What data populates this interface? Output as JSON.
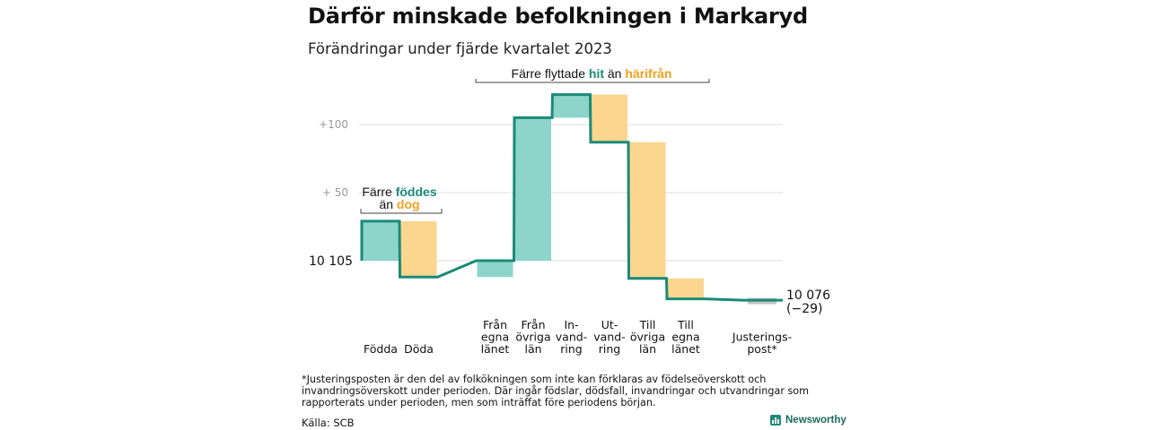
{
  "title": "Därför minskade befolkningen i Markaryd",
  "subtitle": "Förändringar under fjärde kvartalet 2023",
  "colors": {
    "increase": "#8dd5cb",
    "decrease": "#fbd68f",
    "adjustment": "#c4c4c4",
    "line": "#1a8a78",
    "teal_text": "#1a8a78",
    "orange_text": "#f0a020",
    "grid": "#dcdcdc"
  },
  "annotations": {
    "births": {
      "line1_pre": "Färre ",
      "line1_hl": "föddes",
      "line2_pre": "än ",
      "line2_hl": "dog"
    },
    "migration": {
      "pre": "Färre flyttade ",
      "hl1": "hit",
      "mid": " än ",
      "hl2": "härifrån"
    }
  },
  "start_label": "10  105",
  "end_label_1": "10 076",
  "end_label_2": "(−29)",
  "footnote": "*Justeringsposten är den del av folkökningen som inte kan förklaras av födelseöverskott och invandringsöverskott under perioden. Där ingår födslar, dödsfall, invandringar och utvandringar som rapporterats under perioden, men som inträffat före periodens början.",
  "source": "Källa: SCB",
  "brand": "Newsworthy",
  "chart_data": {
    "type": "waterfall",
    "title": "Därför minskade befolkningen i Markaryd",
    "subtitle": "Förändringar under fjärde kvartalet 2023",
    "start_value": 10105,
    "end_value": 10076,
    "net_change": -29,
    "y_ticks": [
      {
        "label": "+100",
        "offset": 100
      },
      {
        "label": "+  50",
        "offset": 50
      }
    ],
    "categories": [
      {
        "label": "Födda",
        "lines": [
          "Födda"
        ],
        "value": 29,
        "kind": "increase"
      },
      {
        "label": "Döda",
        "lines": [
          "Döda"
        ],
        "value": -41,
        "kind": "decrease"
      },
      {
        "label": "Från egna länet",
        "lines": [
          "Från",
          "egna",
          "länet"
        ],
        "value": 12,
        "kind": "increase"
      },
      {
        "label": "Från övriga län",
        "lines": [
          "Från",
          "övriga",
          "län"
        ],
        "value": 105,
        "kind": "increase"
      },
      {
        "label": "Invandring",
        "lines": [
          "In-",
          "vand-",
          "ring"
        ],
        "value": 17,
        "kind": "increase"
      },
      {
        "label": "Utvandring",
        "lines": [
          "Ut-",
          "vand-",
          "ring"
        ],
        "value": -35,
        "kind": "decrease"
      },
      {
        "label": "Till övriga län",
        "lines": [
          "Till",
          "övriga",
          "län"
        ],
        "value": -100,
        "kind": "decrease"
      },
      {
        "label": "Till egna länet",
        "lines": [
          "Till",
          "egna",
          "länet"
        ],
        "value": -15,
        "kind": "decrease"
      },
      {
        "label": "Justeringspost*",
        "lines": [
          "Justerings-",
          "post*"
        ],
        "value": -1,
        "kind": "adjustment"
      }
    ]
  }
}
